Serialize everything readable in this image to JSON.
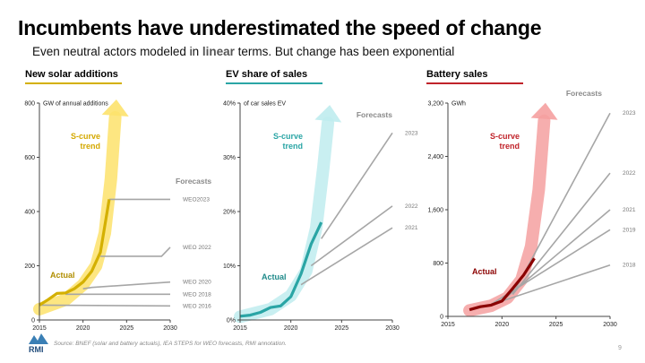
{
  "title": "Incumbents have underestimated the speed of change",
  "subtitle": {
    "before": "Even neutral actors modeled in ",
    "highlight": "linear",
    "after": " terms. But change has been exponential"
  },
  "footer": "Source: BNEF (solar and battery actuals), IEA STEPS for WEO forecasts, RMI annotation.",
  "logo_text": "RMI",
  "page_number": "9",
  "colors": {
    "solar": "#d4b000",
    "solar_dark": "#a88600",
    "solar_arrow": "#fde26b",
    "ev": "#2aa5a5",
    "ev_dark": "#1f8a8a",
    "ev_arrow": "#bfecee",
    "battery": "#8b0000",
    "battery_dark": "#c0232a",
    "battery_arrow": "#f5a0a0",
    "forecast": "#a6a6a6",
    "axis": "#444444"
  },
  "chart_data": [
    {
      "type": "line",
      "title": "New solar additions",
      "unit_label": "GW of annual additions",
      "ylim": [
        0,
        800
      ],
      "yticks": [
        0,
        200,
        400,
        600,
        800
      ],
      "xlim": [
        2015,
        2030
      ],
      "xticks": [
        2015,
        2020,
        2025,
        2030
      ],
      "grid": false,
      "label_forecasts": "Forecasts",
      "label_actual": "Actual",
      "label_trend": "S-curve trend",
      "actual": {
        "x": [
          2015,
          2016,
          2017,
          2018,
          2019,
          2020,
          2021,
          2022,
          2023
        ],
        "y": [
          55,
          75,
          98,
          100,
          115,
          140,
          180,
          250,
          445
        ]
      },
      "trend": {
        "x": [
          2015,
          2018,
          2020,
          2021.5,
          2022.5,
          2023.2,
          2023.8
        ],
        "y": [
          40,
          75,
          130,
          200,
          320,
          520,
          800
        ]
      },
      "series": [
        {
          "name": "WEO2023",
          "x": [
            2023,
            2030
          ],
          "y": [
            445,
            445
          ]
        },
        {
          "name": "WEO 2022",
          "x": [
            2022,
            2029,
            2030
          ],
          "y": [
            235,
            235,
            268
          ]
        },
        {
          "name": "WEO 2020",
          "x": [
            2020,
            2021,
            2030
          ],
          "y": [
            115,
            120,
            140
          ]
        },
        {
          "name": "WEO 2018",
          "x": [
            2018,
            2030
          ],
          "y": [
            95,
            95
          ]
        },
        {
          "name": "WEO 2016",
          "x": [
            2015,
            2030
          ],
          "y": [
            55,
            52
          ]
        }
      ]
    },
    {
      "type": "line",
      "title": "EV share of sales",
      "unit_label": "of car sales EV",
      "ylim": [
        0,
        40
      ],
      "yticks": [
        0,
        10,
        20,
        30,
        40
      ],
      "ytick_labels": [
        "0%",
        "10%",
        "20%",
        "30%",
        "40%"
      ],
      "xlim": [
        2015,
        2030
      ],
      "xticks": [
        2015,
        2020,
        2025,
        2030
      ],
      "grid": false,
      "label_forecasts": "Forecasts",
      "label_actual": "Actual",
      "label_trend": "S-curve trend",
      "actual": {
        "x": [
          2015,
          2016,
          2017,
          2018,
          2019,
          2020,
          2021,
          2022,
          2023
        ],
        "y": [
          0.7,
          0.9,
          1.4,
          2.3,
          2.6,
          4.3,
          8.5,
          14,
          18
        ]
      },
      "trend": {
        "x": [
          2015,
          2018,
          2020,
          2021.5,
          2022.5,
          2023.2,
          2023.8
        ],
        "y": [
          0.6,
          2.0,
          4.5,
          9,
          17,
          28,
          39
        ]
      },
      "series": [
        {
          "name": "2023",
          "x": [
            2023,
            2030
          ],
          "y": [
            15,
            34.5
          ]
        },
        {
          "name": "2022",
          "x": [
            2022,
            2030
          ],
          "y": [
            10,
            21
          ]
        },
        {
          "name": "2021",
          "x": [
            2021,
            2030
          ],
          "y": [
            6.5,
            17
          ]
        }
      ]
    },
    {
      "type": "line",
      "title": "Battery sales",
      "unit_label": "GWh",
      "ylim": [
        0,
        3200
      ],
      "yticks": [
        0,
        800,
        1600,
        2400,
        3200
      ],
      "ytick_labels": [
        "0",
        "800",
        "1,600",
        "2,400",
        "3,200"
      ],
      "xlim": [
        2015,
        2030
      ],
      "xticks": [
        2015,
        2020,
        2025,
        2030
      ],
      "grid": false,
      "label_forecasts": "Forecasts",
      "label_actual": "Actual",
      "label_trend": "S-curve trend",
      "actual": {
        "x": [
          2017,
          2018,
          2019,
          2020,
          2021,
          2022,
          2023
        ],
        "y": [
          100,
          145,
          170,
          230,
          420,
          620,
          870
        ]
      },
      "trend": {
        "x": [
          2017,
          2019,
          2020.5,
          2021.8,
          2022.7,
          2023.4,
          2024
        ],
        "y": [
          90,
          160,
          280,
          550,
          1050,
          1900,
          3150
        ]
      },
      "series": [
        {
          "name": "2023",
          "x": [
            2021,
            2030
          ],
          "y": [
            330,
            3050
          ]
        },
        {
          "name": "2022",
          "x": [
            2021,
            2030
          ],
          "y": [
            330,
            2150
          ]
        },
        {
          "name": "2021",
          "x": [
            2020,
            2030
          ],
          "y": [
            230,
            1600
          ]
        },
        {
          "name": "2019",
          "x": [
            2019,
            2030
          ],
          "y": [
            180,
            1300
          ]
        },
        {
          "name": "2018",
          "x": [
            2020,
            2030
          ],
          "y": [
            230,
            770
          ]
        }
      ]
    }
  ]
}
